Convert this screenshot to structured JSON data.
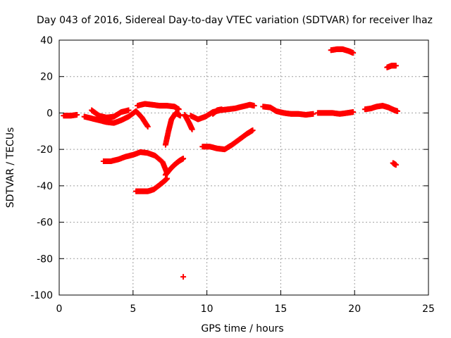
{
  "chart_data": {
    "type": "scatter",
    "title": "Day 043 of 2016, Sidereal Day-to-day VTEC variation (SDTVAR) for receiver lhaz",
    "xlabel": "GPS time / hours",
    "ylabel": "SDTVAR / TECUs",
    "xlim": [
      0,
      25
    ],
    "ylim": [
      -100,
      40
    ],
    "xticks": [
      0,
      5,
      10,
      15,
      20,
      25
    ],
    "yticks": [
      -100,
      -80,
      -60,
      -40,
      -20,
      0,
      20,
      40
    ],
    "grid": true,
    "marker": "plus",
    "color": "#ff0000",
    "series": [
      {
        "name": "s1",
        "x": [
          0.3,
          0.8,
          1.2
        ],
        "y": [
          -1.5,
          -1.5,
          -1.0
        ]
      },
      {
        "name": "s2",
        "x": [
          1.7,
          2.2,
          2.7,
          3.2,
          3.7,
          4.2,
          4.7,
          5.2,
          5.6,
          6.0
        ],
        "y": [
          -2.0,
          -3.0,
          -4.0,
          -5.0,
          -5.5,
          -4.0,
          -2.0,
          1.0,
          -2.5,
          -7.5
        ]
      },
      {
        "name": "s3",
        "x": [
          2.2,
          2.7,
          3.2,
          3.7,
          4.2,
          4.7
        ],
        "y": [
          1.5,
          -1.5,
          -2.5,
          -2.0,
          0.5,
          1.5
        ]
      },
      {
        "name": "s4",
        "x": [
          3.0,
          3.5,
          4.0,
          4.5,
          5.0,
          5.5,
          6.0,
          6.5,
          7.0,
          7.3
        ],
        "y": [
          -26.5,
          -26.5,
          -25.5,
          -24.0,
          -23.0,
          -21.5,
          -22.0,
          -23.5,
          -27.0,
          -33.0
        ]
      },
      {
        "name": "s5",
        "x": [
          5.2,
          5.6,
          6.0,
          6.4,
          6.8,
          7.1,
          7.3
        ],
        "y": [
          -43.0,
          -43.0,
          -43.0,
          -42.0,
          -39.5,
          -37.5,
          -36.0
        ]
      },
      {
        "name": "s6",
        "x": [
          7.2,
          7.5,
          7.8,
          8.1,
          8.4
        ],
        "y": [
          -34.0,
          -31.0,
          -28.5,
          -26.5,
          -25.0
        ]
      },
      {
        "name": "s7",
        "x": [
          5.3,
          5.8,
          6.3,
          6.8,
          7.3,
          7.8,
          8.1
        ],
        "y": [
          4.0,
          5.0,
          4.5,
          4.0,
          4.0,
          3.5,
          2.0
        ]
      },
      {
        "name": "s8",
        "x": [
          7.2,
          7.4,
          7.6,
          7.9,
          8.2
        ],
        "y": [
          -17.5,
          -10.0,
          -3.5,
          0.0,
          -1.5
        ]
      },
      {
        "name": "s9",
        "x": [
          8.5,
          8.8,
          9.0
        ],
        "y": [
          -1.0,
          -5.5,
          -9.0
        ]
      },
      {
        "name": "s10",
        "x": [
          8.9,
          9.4,
          9.9,
          10.4,
          10.9,
          11.4,
          11.9,
          12.4,
          12.9,
          13.2
        ],
        "y": [
          -1.5,
          -3.5,
          -2.0,
          0.5,
          1.5,
          2.0,
          2.5,
          3.5,
          4.5,
          4.0
        ]
      },
      {
        "name": "s11",
        "x": [
          10.4,
          10.7,
          11.0
        ],
        "y": [
          -0.5,
          1.5,
          2.0
        ]
      },
      {
        "name": "s12",
        "x": [
          9.7,
          10.2,
          10.7,
          11.2,
          11.7,
          12.2,
          12.7,
          13.1
        ],
        "y": [
          -18.5,
          -18.5,
          -19.5,
          -20.0,
          -17.5,
          -14.5,
          -11.5,
          -9.5
        ]
      },
      {
        "name": "s13",
        "x": [
          13.8,
          14.3,
          14.7,
          15.2,
          15.7,
          16.2,
          16.7,
          17.2
        ],
        "y": [
          3.5,
          3.0,
          1.0,
          0.0,
          -0.5,
          -0.5,
          -1.0,
          -0.5
        ]
      },
      {
        "name": "s14",
        "x": [
          17.5,
          18.0,
          18.5,
          19.0,
          19.5,
          19.9
        ],
        "y": [
          0.0,
          0.0,
          0.0,
          -0.5,
          0.0,
          0.5
        ]
      },
      {
        "name": "s15",
        "x": [
          18.4,
          18.8,
          19.2,
          19.6,
          19.9
        ],
        "y": [
          34.5,
          35.0,
          35.0,
          34.0,
          33.0
        ]
      },
      {
        "name": "s16",
        "x": [
          20.7,
          21.1,
          21.5,
          21.9,
          22.3,
          22.7,
          22.9
        ],
        "y": [
          2.0,
          2.5,
          3.5,
          4.0,
          3.0,
          1.5,
          1.0
        ]
      },
      {
        "name": "s17",
        "x": [
          22.2,
          22.5,
          22.8
        ],
        "y": [
          25.0,
          26.0,
          26.0
        ]
      },
      {
        "name": "s18",
        "x": [
          22.6,
          22.8
        ],
        "y": [
          -27.5,
          -28.5
        ]
      },
      {
        "name": "s19",
        "x": [
          8.4
        ],
        "y": [
          -90.0
        ]
      }
    ]
  }
}
